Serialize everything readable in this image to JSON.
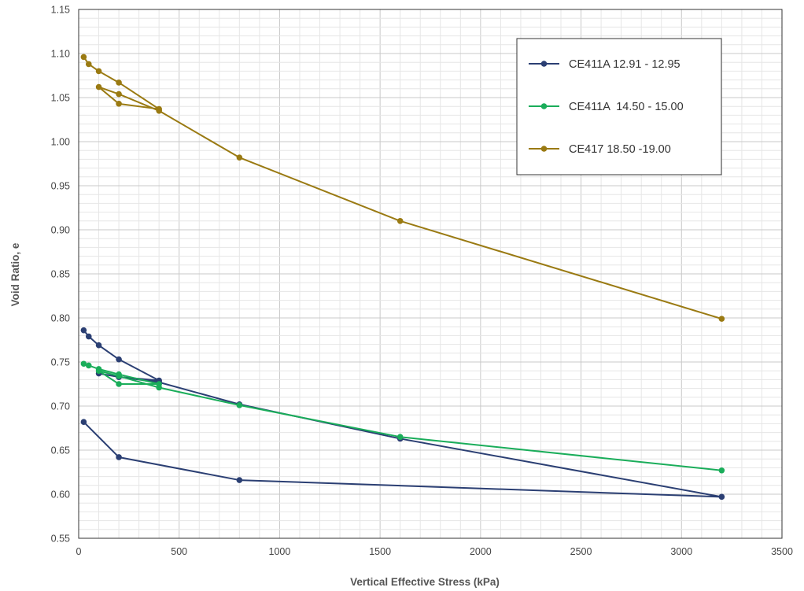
{
  "chart_data": {
    "type": "line",
    "title": "",
    "xlabel": "Vertical Effective Stress (kPa)",
    "ylabel": "Void Ratio, e",
    "xlim": [
      0,
      3500
    ],
    "ylim": [
      0.55,
      1.15
    ],
    "x_ticks": [
      0,
      500,
      1000,
      1500,
      2000,
      2500,
      3000,
      3500
    ],
    "y_ticks": [
      0.55,
      0.6,
      0.65,
      0.7,
      0.75,
      0.8,
      0.85,
      0.9,
      0.95,
      1.0,
      1.05,
      1.1,
      1.15
    ],
    "x_minor_step": 100,
    "y_minor_step": 0.01,
    "grid": true,
    "legend_position": "top-right",
    "series": [
      {
        "name": "CE411A 12.91 - 12.95",
        "color": "#2b3f73",
        "points": [
          [
            25,
            0.786
          ],
          [
            50,
            0.779
          ],
          [
            100,
            0.769
          ],
          [
            200,
            0.753
          ],
          [
            400,
            0.729
          ],
          [
            200,
            0.733
          ],
          [
            100,
            0.737
          ],
          [
            200,
            0.733
          ],
          [
            400,
            0.727
          ],
          [
            800,
            0.702
          ],
          [
            1600,
            0.663
          ],
          [
            3200,
            0.597
          ],
          [
            800,
            0.616
          ],
          [
            200,
            0.642
          ],
          [
            25,
            0.682
          ]
        ]
      },
      {
        "name": "CE411A  14.50 - 15.00",
        "color": "#1aad5a",
        "points": [
          [
            25,
            0.748
          ],
          [
            50,
            0.746
          ],
          [
            100,
            0.742
          ],
          [
            200,
            0.736
          ],
          [
            400,
            0.725
          ],
          [
            200,
            0.725
          ],
          [
            100,
            0.74
          ],
          [
            200,
            0.734
          ],
          [
            400,
            0.721
          ],
          [
            800,
            0.701
          ],
          [
            1600,
            0.665
          ],
          [
            3200,
            0.627
          ]
        ]
      },
      {
        "name": "CE417 18.50 -19.00",
        "color": "#9a7a12",
        "points": [
          [
            25,
            1.096
          ],
          [
            50,
            1.088
          ],
          [
            100,
            1.08
          ],
          [
            200,
            1.067
          ],
          [
            400,
            1.037
          ],
          [
            200,
            1.043
          ],
          [
            100,
            1.062
          ],
          [
            200,
            1.054
          ],
          [
            400,
            1.035
          ],
          [
            800,
            0.982
          ],
          [
            1600,
            0.91
          ],
          [
            3200,
            0.799
          ]
        ]
      }
    ]
  }
}
